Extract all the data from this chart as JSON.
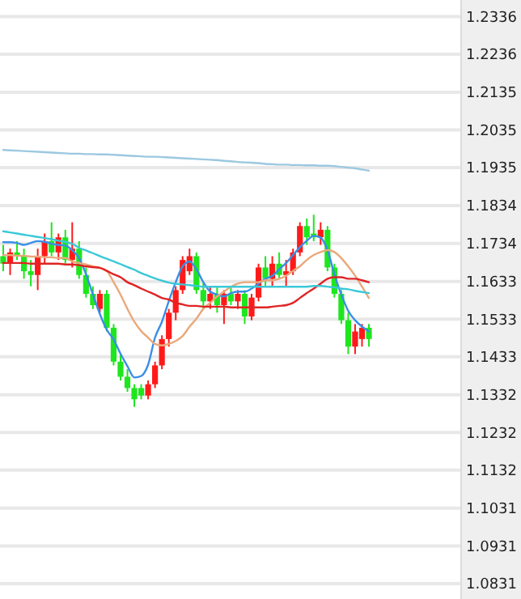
{
  "chart_data": {
    "type": "candlestick",
    "categories": [
      null,
      null,
      null,
      null,
      null,
      null,
      null,
      null,
      null,
      null,
      null,
      null,
      null,
      null,
      null,
      null,
      null,
      null,
      null,
      null,
      null,
      null,
      null,
      null,
      null,
      null,
      null,
      null,
      null,
      null,
      null,
      null,
      null,
      null,
      null,
      null,
      null,
      null,
      null,
      null,
      null,
      null,
      null,
      null,
      null,
      null,
      null,
      null,
      null,
      null,
      null,
      null,
      null,
      null
    ],
    "ohlc": [
      [
        1.17,
        1.173,
        1.166,
        1.168
      ],
      [
        1.168,
        1.172,
        1.165,
        1.171
      ],
      [
        1.171,
        1.174,
        1.169,
        1.17
      ],
      [
        1.17,
        1.172,
        1.164,
        1.166
      ],
      [
        1.166,
        1.169,
        1.162,
        1.165
      ],
      [
        1.165,
        1.172,
        1.161,
        1.17
      ],
      [
        1.17,
        1.176,
        1.168,
        1.174
      ],
      [
        1.174,
        1.179,
        1.17,
        1.171
      ],
      [
        1.171,
        1.176,
        1.169,
        1.175
      ],
      [
        1.175,
        1.177,
        1.168,
        1.169
      ],
      [
        1.169,
        1.179,
        1.167,
        1.172
      ],
      [
        1.172,
        1.174,
        1.164,
        1.165
      ],
      [
        1.165,
        1.167,
        1.159,
        1.16
      ],
      [
        1.16,
        1.162,
        1.156,
        1.157
      ],
      [
        1.156,
        1.161,
        1.155,
        1.16
      ],
      [
        1.16,
        1.161,
        1.15,
        1.151
      ],
      [
        1.151,
        1.152,
        1.141,
        1.142
      ],
      [
        1.142,
        1.144,
        1.137,
        1.138
      ],
      [
        1.138,
        1.14,
        1.134,
        1.135
      ],
      [
        1.135,
        1.136,
        1.13,
        1.132
      ],
      [
        1.135,
        1.136,
        1.132,
        1.133
      ],
      [
        1.133,
        1.137,
        1.132,
        1.136
      ],
      [
        1.136,
        1.142,
        1.135,
        1.141
      ],
      [
        1.141,
        1.149,
        1.14,
        1.148
      ],
      [
        1.148,
        1.156,
        1.146,
        1.155
      ],
      [
        1.155,
        1.162,
        1.153,
        1.161
      ],
      [
        1.161,
        1.17,
        1.16,
        1.169
      ],
      [
        1.166,
        1.172,
        1.165,
        1.17
      ],
      [
        1.17,
        1.171,
        1.16,
        1.161
      ],
      [
        1.161,
        1.163,
        1.156,
        1.158
      ],
      [
        1.158,
        1.162,
        1.156,
        1.16
      ],
      [
        1.16,
        1.162,
        1.155,
        1.157
      ],
      [
        1.157,
        1.161,
        1.152,
        1.16
      ],
      [
        1.16,
        1.162,
        1.157,
        1.158
      ],
      [
        1.158,
        1.161,
        1.156,
        1.16
      ],
      [
        1.16,
        1.161,
        1.152,
        1.154
      ],
      [
        1.154,
        1.16,
        1.153,
        1.159
      ],
      [
        1.159,
        1.168,
        1.158,
        1.167
      ],
      [
        1.167,
        1.17,
        1.162,
        1.164
      ],
      [
        1.164,
        1.17,
        1.162,
        1.168
      ],
      [
        1.168,
        1.171,
        1.164,
        1.165
      ],
      [
        1.165,
        1.169,
        1.162,
        1.166
      ],
      [
        1.166,
        1.172,
        1.165,
        1.171
      ],
      [
        1.171,
        1.179,
        1.17,
        1.178
      ],
      [
        1.178,
        1.18,
        1.173,
        1.175
      ],
      [
        1.176,
        1.181,
        1.174,
        1.175
      ],
      [
        1.175,
        1.179,
        1.173,
        1.177
      ],
      [
        1.177,
        1.178,
        1.166,
        1.167
      ],
      [
        1.167,
        1.168,
        1.159,
        1.16
      ],
      [
        1.16,
        1.161,
        1.152,
        1.153
      ],
      [
        1.153,
        1.155,
        1.144,
        1.146
      ],
      [
        1.146,
        1.152,
        1.144,
        1.15
      ],
      [
        1.148,
        1.152,
        1.146,
        1.151
      ],
      [
        1.151,
        1.152,
        1.146,
        1.148
      ]
    ],
    "series": [
      {
        "type": "line",
        "color": "#3a8ee8",
        "values": [
          1.1737,
          1.1737,
          1.1735,
          1.173,
          1.1735,
          1.174,
          1.1738,
          1.1733,
          1.173,
          1.1728,
          1.1716,
          1.1695,
          1.1652,
          1.1598,
          1.1547,
          1.1505,
          1.1479,
          1.1441,
          1.1408,
          1.1378,
          1.1382,
          1.1412,
          1.1484,
          1.1526,
          1.1581,
          1.1631,
          1.1673,
          1.1686,
          1.1665,
          1.1631,
          1.1606,
          1.1598,
          1.1593,
          1.1602,
          1.1606,
          1.1606,
          1.1614,
          1.1627,
          1.164,
          1.1648,
          1.1665,
          1.1682,
          1.1703,
          1.1724,
          1.1741,
          1.1754,
          1.1749,
          1.1716,
          1.1652,
          1.1598,
          1.1555,
          1.153,
          1.1513,
          1.15
        ]
      },
      {
        "type": "line",
        "color": "#eaa87a",
        "values": [
          1.1703,
          1.1703,
          1.1701,
          1.1701,
          1.1699,
          1.1699,
          1.1697,
          1.1697,
          1.1695,
          1.1695,
          1.1686,
          1.1682,
          1.1678,
          1.1673,
          1.1669,
          1.1661,
          1.1631,
          1.1598,
          1.156,
          1.1526,
          1.1501,
          1.1484,
          1.1467,
          1.1463,
          1.1467,
          1.1475,
          1.1488,
          1.1513,
          1.1534,
          1.156,
          1.1576,
          1.1593,
          1.1606,
          1.1619,
          1.1627,
          1.1631,
          1.1631,
          1.1631,
          1.1636,
          1.1636,
          1.164,
          1.1648,
          1.1661,
          1.1673,
          1.169,
          1.1703,
          1.1711,
          1.1716,
          1.1711,
          1.1695,
          1.1673,
          1.1648,
          1.1619,
          1.1589
        ]
      },
      {
        "type": "line",
        "color": "#e02424",
        "values": [
          1.1682,
          1.1682,
          1.1682,
          1.1682,
          1.168,
          1.168,
          1.168,
          1.168,
          1.168,
          1.1678,
          1.1678,
          1.1676,
          1.1673,
          1.1671,
          1.1669,
          1.1661,
          1.1652,
          1.1644,
          1.1631,
          1.1623,
          1.1614,
          1.1606,
          1.1598,
          1.1589,
          1.1585,
          1.1576,
          1.1572,
          1.1568,
          1.1568,
          1.1566,
          1.1566,
          1.1566,
          1.1566,
          1.1564,
          1.1564,
          1.1564,
          1.1564,
          1.1564,
          1.1564,
          1.1566,
          1.1568,
          1.157,
          1.1576,
          1.1589,
          1.1602,
          1.1614,
          1.1627,
          1.164,
          1.1644,
          1.1644,
          1.164,
          1.164,
          1.1636,
          1.1631
        ]
      },
      {
        "type": "line",
        "color": "#3cc8d8",
        "values": [
          1.1766,
          1.1763,
          1.176,
          1.1757,
          1.1754,
          1.1751,
          1.1748,
          1.1745,
          1.1741,
          1.1738,
          1.1733,
          1.1722,
          1.1715,
          1.1708,
          1.17,
          1.1693,
          1.1686,
          1.1679,
          1.1671,
          1.1664,
          1.1655,
          1.1648,
          1.1641,
          1.1635,
          1.163,
          1.1627,
          1.1625,
          1.1623,
          1.1621,
          1.1619,
          1.1619,
          1.1619,
          1.1619,
          1.1619,
          1.1619,
          1.1619,
          1.1619,
          1.1619,
          1.1619,
          1.1619,
          1.1619,
          1.1619,
          1.1619,
          1.1619,
          1.1619,
          1.1621,
          1.1621,
          1.1619,
          1.1617,
          1.1614,
          1.1612,
          1.1608,
          1.1605,
          1.1602
        ]
      },
      {
        "type": "line",
        "color": "#9cc8e0",
        "values": [
          1.1982,
          1.1981,
          1.198,
          1.1979,
          1.1978,
          1.1977,
          1.1976,
          1.1975,
          1.1974,
          1.1973,
          1.1972,
          1.1972,
          1.1971,
          1.1971,
          1.197,
          1.197,
          1.1969,
          1.1968,
          1.1967,
          1.1966,
          1.1965,
          1.1964,
          1.1964,
          1.1963,
          1.1962,
          1.1961,
          1.196,
          1.1959,
          1.1958,
          1.1957,
          1.1956,
          1.1955,
          1.1953,
          1.1952,
          1.195,
          1.1949,
          1.1948,
          1.1947,
          1.1945,
          1.1944,
          1.1943,
          1.1943,
          1.1942,
          1.1942,
          1.1941,
          1.1941,
          1.194,
          1.194,
          1.1939,
          1.1937,
          1.1935,
          1.1933,
          1.193,
          1.1927
        ]
      }
    ],
    "ylim": [
      1.079,
      1.238
    ],
    "yticks": [
      1.2336,
      1.2236,
      1.2135,
      1.2035,
      1.1935,
      1.1834,
      1.1734,
      1.1633,
      1.1533,
      1.1433,
      1.1332,
      1.1232,
      1.1132,
      1.1031,
      1.0931,
      1.0831
    ],
    "grid": "y",
    "line_style": "solid",
    "marker": "none"
  }
}
